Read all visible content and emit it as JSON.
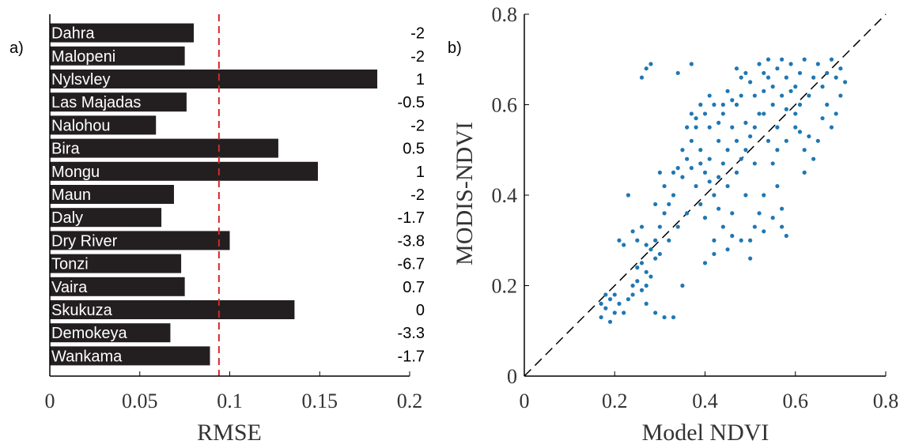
{
  "chart_data": [
    {
      "type": "bar",
      "orientation": "horizontal",
      "panel_label": "a)",
      "xlabel": "RMSE",
      "ylabel": "",
      "xlim": [
        0,
        0.2
      ],
      "xticks": [
        "0",
        "0.05",
        "0.1",
        "0.15",
        "0.2"
      ],
      "bar_color": "#231f20",
      "reference_line": {
        "value": 0.094,
        "color": "#d62728",
        "style": "dashed"
      },
      "categories": [
        "Dahra",
        "Malopeni",
        "Nylsvley",
        "Las Majadas",
        "Nalohou",
        "Bira",
        "Mongu",
        "Maun",
        "Daly",
        "Dry River",
        "Tonzi",
        "Vaira",
        "Skukuza",
        "Demokeya",
        "Wankama"
      ],
      "values": [
        0.08,
        0.075,
        0.182,
        0.076,
        0.059,
        0.127,
        0.149,
        0.069,
        0.062,
        0.1,
        0.073,
        0.075,
        0.136,
        0.067,
        0.089
      ],
      "annotations": [
        "-2",
        "-2",
        "1",
        "-0.5",
        "-2",
        "0.5",
        "1",
        "-2",
        "-1.7",
        "-3.8",
        "-6.7",
        "0.7",
        "0",
        "-3.3",
        "-1.7"
      ]
    },
    {
      "type": "scatter",
      "panel_label": "b)",
      "xlabel": "Model NDVI",
      "ylabel": "MODIS-NDVI",
      "xlim": [
        0,
        0.8
      ],
      "ylim": [
        0,
        0.8
      ],
      "xticks": [
        "0",
        "0.2",
        "0.4",
        "0.6",
        "0.8"
      ],
      "yticks": [
        "0",
        "0.2",
        "0.4",
        "0.6",
        "0.8"
      ],
      "point_color": "#1f77b4",
      "reference_line": {
        "x": [
          0,
          0.8
        ],
        "y": [
          0,
          0.8
        ],
        "color": "#000000",
        "style": "dashed"
      },
      "points": [
        [
          0.17,
          0.13
        ],
        [
          0.18,
          0.15
        ],
        [
          0.19,
          0.17
        ],
        [
          0.2,
          0.14
        ],
        [
          0.18,
          0.18
        ],
        [
          0.21,
          0.16
        ],
        [
          0.19,
          0.12
        ],
        [
          0.22,
          0.14
        ],
        [
          0.2,
          0.18
        ],
        [
          0.17,
          0.16
        ],
        [
          0.23,
          0.17
        ],
        [
          0.24,
          0.2
        ],
        [
          0.25,
          0.21
        ],
        [
          0.26,
          0.19
        ],
        [
          0.27,
          0.23
        ],
        [
          0.28,
          0.22
        ],
        [
          0.24,
          0.18
        ],
        [
          0.25,
          0.24
        ],
        [
          0.26,
          0.25
        ],
        [
          0.27,
          0.2
        ],
        [
          0.29,
          0.26
        ],
        [
          0.28,
          0.28
        ],
        [
          0.3,
          0.27
        ],
        [
          0.27,
          0.29
        ],
        [
          0.25,
          0.3
        ],
        [
          0.24,
          0.32
        ],
        [
          0.26,
          0.33
        ],
        [
          0.22,
          0.29
        ],
        [
          0.23,
          0.4
        ],
        [
          0.21,
          0.3
        ],
        [
          0.31,
          0.13
        ],
        [
          0.29,
          0.14
        ],
        [
          0.27,
          0.16
        ],
        [
          0.33,
          0.13
        ],
        [
          0.35,
          0.2
        ],
        [
          0.32,
          0.3
        ],
        [
          0.34,
          0.33
        ],
        [
          0.36,
          0.36
        ],
        [
          0.33,
          0.4
        ],
        [
          0.35,
          0.44
        ],
        [
          0.36,
          0.48
        ],
        [
          0.37,
          0.52
        ],
        [
          0.38,
          0.55
        ],
        [
          0.37,
          0.46
        ],
        [
          0.39,
          0.5
        ],
        [
          0.38,
          0.42
        ],
        [
          0.4,
          0.45
        ],
        [
          0.41,
          0.48
        ],
        [
          0.39,
          0.38
        ],
        [
          0.4,
          0.35
        ],
        [
          0.42,
          0.4
        ],
        [
          0.43,
          0.44
        ],
        [
          0.41,
          0.55
        ],
        [
          0.44,
          0.58
        ],
        [
          0.43,
          0.52
        ],
        [
          0.45,
          0.5
        ],
        [
          0.42,
          0.3
        ],
        [
          0.44,
          0.33
        ],
        [
          0.46,
          0.36
        ],
        [
          0.45,
          0.42
        ],
        [
          0.47,
          0.45
        ],
        [
          0.48,
          0.48
        ],
        [
          0.46,
          0.55
        ],
        [
          0.47,
          0.6
        ],
        [
          0.48,
          0.62
        ],
        [
          0.49,
          0.56
        ],
        [
          0.5,
          0.53
        ],
        [
          0.49,
          0.4
        ],
        [
          0.5,
          0.3
        ],
        [
          0.51,
          0.33
        ],
        [
          0.52,
          0.36
        ],
        [
          0.53,
          0.4
        ],
        [
          0.51,
          0.47
        ],
        [
          0.52,
          0.58
        ],
        [
          0.53,
          0.63
        ],
        [
          0.54,
          0.66
        ],
        [
          0.55,
          0.6
        ],
        [
          0.54,
          0.52
        ],
        [
          0.55,
          0.47
        ],
        [
          0.56,
          0.42
        ],
        [
          0.57,
          0.37
        ],
        [
          0.58,
          0.31
        ],
        [
          0.56,
          0.55
        ],
        [
          0.57,
          0.62
        ],
        [
          0.58,
          0.66
        ],
        [
          0.59,
          0.69
        ],
        [
          0.6,
          0.64
        ],
        [
          0.61,
          0.67
        ],
        [
          0.62,
          0.7
        ],
        [
          0.6,
          0.58
        ],
        [
          0.61,
          0.54
        ],
        [
          0.62,
          0.5
        ],
        [
          0.63,
          0.62
        ],
        [
          0.64,
          0.66
        ],
        [
          0.65,
          0.69
        ],
        [
          0.66,
          0.64
        ],
        [
          0.67,
          0.67
        ],
        [
          0.68,
          0.7
        ],
        [
          0.69,
          0.66
        ],
        [
          0.7,
          0.68
        ],
        [
          0.71,
          0.65
        ],
        [
          0.7,
          0.62
        ],
        [
          0.69,
          0.58
        ],
        [
          0.68,
          0.55
        ],
        [
          0.67,
          0.6
        ],
        [
          0.66,
          0.57
        ],
        [
          0.65,
          0.52
        ],
        [
          0.64,
          0.48
        ],
        [
          0.63,
          0.53
        ],
        [
          0.62,
          0.45
        ],
        [
          0.61,
          0.6
        ],
        [
          0.59,
          0.63
        ],
        [
          0.58,
          0.59
        ],
        [
          0.57,
          0.7
        ],
        [
          0.56,
          0.68
        ],
        [
          0.55,
          0.64
        ],
        [
          0.54,
          0.7
        ],
        [
          0.53,
          0.67
        ],
        [
          0.52,
          0.69
        ],
        [
          0.51,
          0.62
        ],
        [
          0.5,
          0.65
        ],
        [
          0.49,
          0.67
        ],
        [
          0.48,
          0.66
        ],
        [
          0.47,
          0.68
        ],
        [
          0.46,
          0.61
        ],
        [
          0.45,
          0.63
        ],
        [
          0.44,
          0.6
        ],
        [
          0.43,
          0.56
        ],
        [
          0.42,
          0.6
        ],
        [
          0.41,
          0.62
        ],
        [
          0.4,
          0.58
        ],
        [
          0.39,
          0.6
        ],
        [
          0.38,
          0.57
        ],
        [
          0.37,
          0.58
        ],
        [
          0.36,
          0.55
        ],
        [
          0.35,
          0.5
        ],
        [
          0.34,
          0.46
        ],
        [
          0.33,
          0.45
        ],
        [
          0.32,
          0.38
        ],
        [
          0.31,
          0.36
        ],
        [
          0.3,
          0.33
        ],
        [
          0.29,
          0.3
        ],
        [
          0.28,
          0.69
        ],
        [
          0.27,
          0.68
        ],
        [
          0.26,
          0.66
        ],
        [
          0.37,
          0.69
        ],
        [
          0.34,
          0.67
        ],
        [
          0.3,
          0.45
        ],
        [
          0.31,
          0.42
        ],
        [
          0.29,
          0.38
        ],
        [
          0.4,
          0.25
        ],
        [
          0.42,
          0.27
        ],
        [
          0.45,
          0.28
        ],
        [
          0.48,
          0.3
        ],
        [
          0.5,
          0.26
        ],
        [
          0.53,
          0.32
        ],
        [
          0.55,
          0.35
        ],
        [
          0.57,
          0.33
        ],
        [
          0.43,
          0.37
        ],
        [
          0.46,
          0.31
        ],
        [
          0.39,
          0.47
        ],
        [
          0.41,
          0.43
        ],
        [
          0.44,
          0.47
        ],
        [
          0.47,
          0.52
        ],
        [
          0.49,
          0.5
        ],
        [
          0.51,
          0.55
        ],
        [
          0.53,
          0.58
        ],
        [
          0.56,
          0.5
        ],
        [
          0.58,
          0.52
        ],
        [
          0.6,
          0.55
        ]
      ]
    }
  ]
}
